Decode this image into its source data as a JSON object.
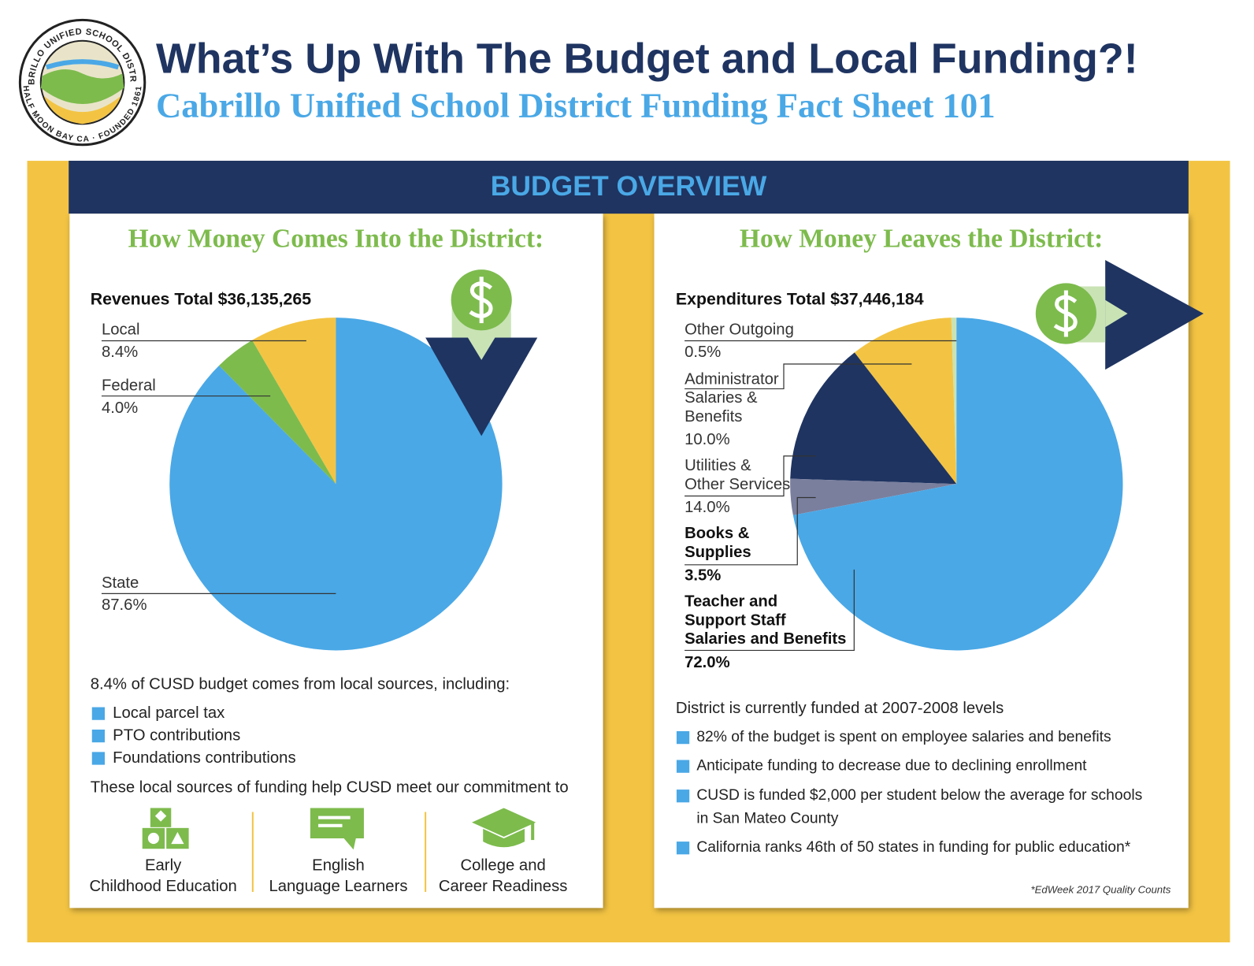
{
  "header": {
    "title": "What’s Up With The Budget and Local Funding?!",
    "subtitle": "Cabrillo Unified School District Funding Fact Sheet 101",
    "logo_top": "CABRILLO UNIFIED SCHOOL DISTRICT",
    "logo_bottom": "HALF MOON BAY CA · FOUNDED 1861"
  },
  "banner": "BUDGET OVERVIEW",
  "chart_data": [
    {
      "type": "pie",
      "heading": "How Money Comes Into the District:",
      "title": "Revenues Total $36,135,265",
      "categories": [
        "Local",
        "Federal",
        "State"
      ],
      "values": [
        8.4,
        4.0,
        87.6
      ],
      "value_labels": [
        "8.4%",
        "4.0%",
        "87.6%"
      ],
      "colors": [
        "#f3c443",
        "#7dbb4d",
        "#4aa8e6"
      ]
    },
    {
      "type": "pie",
      "heading": "How Money Leaves the District:",
      "title": "Expenditures Total $37,446,184",
      "categories": [
        "Other Outgoing",
        "Administrator Salaries & Benefits",
        "Utilities & Other Services",
        "Books & Supplies",
        "Teacher and Support Staff Salaries and Benefits"
      ],
      "values": [
        0.5,
        10.0,
        14.0,
        3.5,
        72.0
      ],
      "value_labels": [
        "0.5%",
        "10.0%",
        "14.0%",
        "3.5%",
        "72.0%"
      ],
      "colors": [
        "#c9e3b5",
        "#f3c443",
        "#1f3461",
        "#7a7f9e",
        "#4aa8e6"
      ]
    }
  ],
  "left_panel": {
    "intro": "8.4% of CUSD budget comes from local sources, including:",
    "bullets": [
      "Local parcel tax",
      "PTO contributions",
      "Foundations contributions"
    ],
    "commitment": "These local sources of funding help CUSD meet our commitment to",
    "programs": [
      "Early Childhood Education",
      "English Language Learners",
      "College and Career Readiness"
    ]
  },
  "right_panel": {
    "intro": "District is currently funded at 2007-2008 levels",
    "bullets": [
      "82% of the budget is spent on employee salaries and benefits",
      "Anticipate funding to decrease due to declining enrollment",
      "CUSD is funded $2,000 per student below the average for schools in San Mateo County",
      "California ranks 46th of 50 states in funding for public education*"
    ],
    "footnote": "*EdWeek 2017 Quality Counts"
  }
}
